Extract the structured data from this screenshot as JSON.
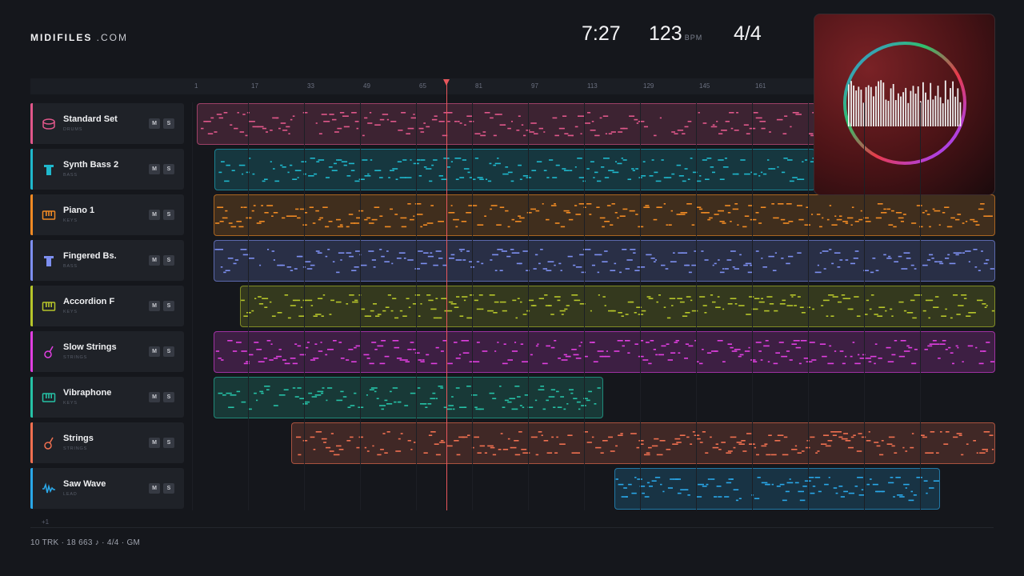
{
  "brand": {
    "name_bold": "MIDIFILES",
    "name_rest": " .COM"
  },
  "transport": {
    "time": "7:27",
    "tempo": "123",
    "tempo_unit": "BPM",
    "signature": "4/4"
  },
  "ruler": {
    "ticks": [
      "1",
      "17",
      "33",
      "49",
      "65",
      "81",
      "97",
      "113",
      "129",
      "145",
      "161"
    ]
  },
  "tracks": [
    {
      "name": "Standard Set",
      "category": "DRUMS",
      "color": "#e0578a",
      "icon": "drum-icon"
    },
    {
      "name": "Synth Bass 2",
      "category": "BASS",
      "color": "#1fb8cc",
      "icon": "bass-amp-icon"
    },
    {
      "name": "Piano 1",
      "category": "KEYS",
      "color": "#f08a24",
      "icon": "keyboard-icon"
    },
    {
      "name": "Fingered Bs.",
      "category": "BASS",
      "color": "#7d8ff0",
      "icon": "bass-amp-icon"
    },
    {
      "name": "Accordion F",
      "category": "KEYS",
      "color": "#b6c52a",
      "icon": "keyboard-icon"
    },
    {
      "name": "Slow Strings",
      "category": "STRINGS",
      "color": "#e03fe0",
      "icon": "guitar-icon"
    },
    {
      "name": "Vibraphone",
      "category": "KEYS",
      "color": "#26c1a6",
      "icon": "keyboard-icon"
    },
    {
      "name": "Strings",
      "category": "STRINGS",
      "color": "#f07050",
      "icon": "guitar-icon"
    },
    {
      "name": "Saw Wave",
      "category": "LEAD",
      "color": "#2aa7e8",
      "icon": "waveform-icon"
    }
  ],
  "buttons": {
    "mute": "M",
    "solo": "S"
  },
  "more_tracks": "+1",
  "footer": "10 TRK  ·  18 663 ♪  ·  4/4  ·  GM"
}
